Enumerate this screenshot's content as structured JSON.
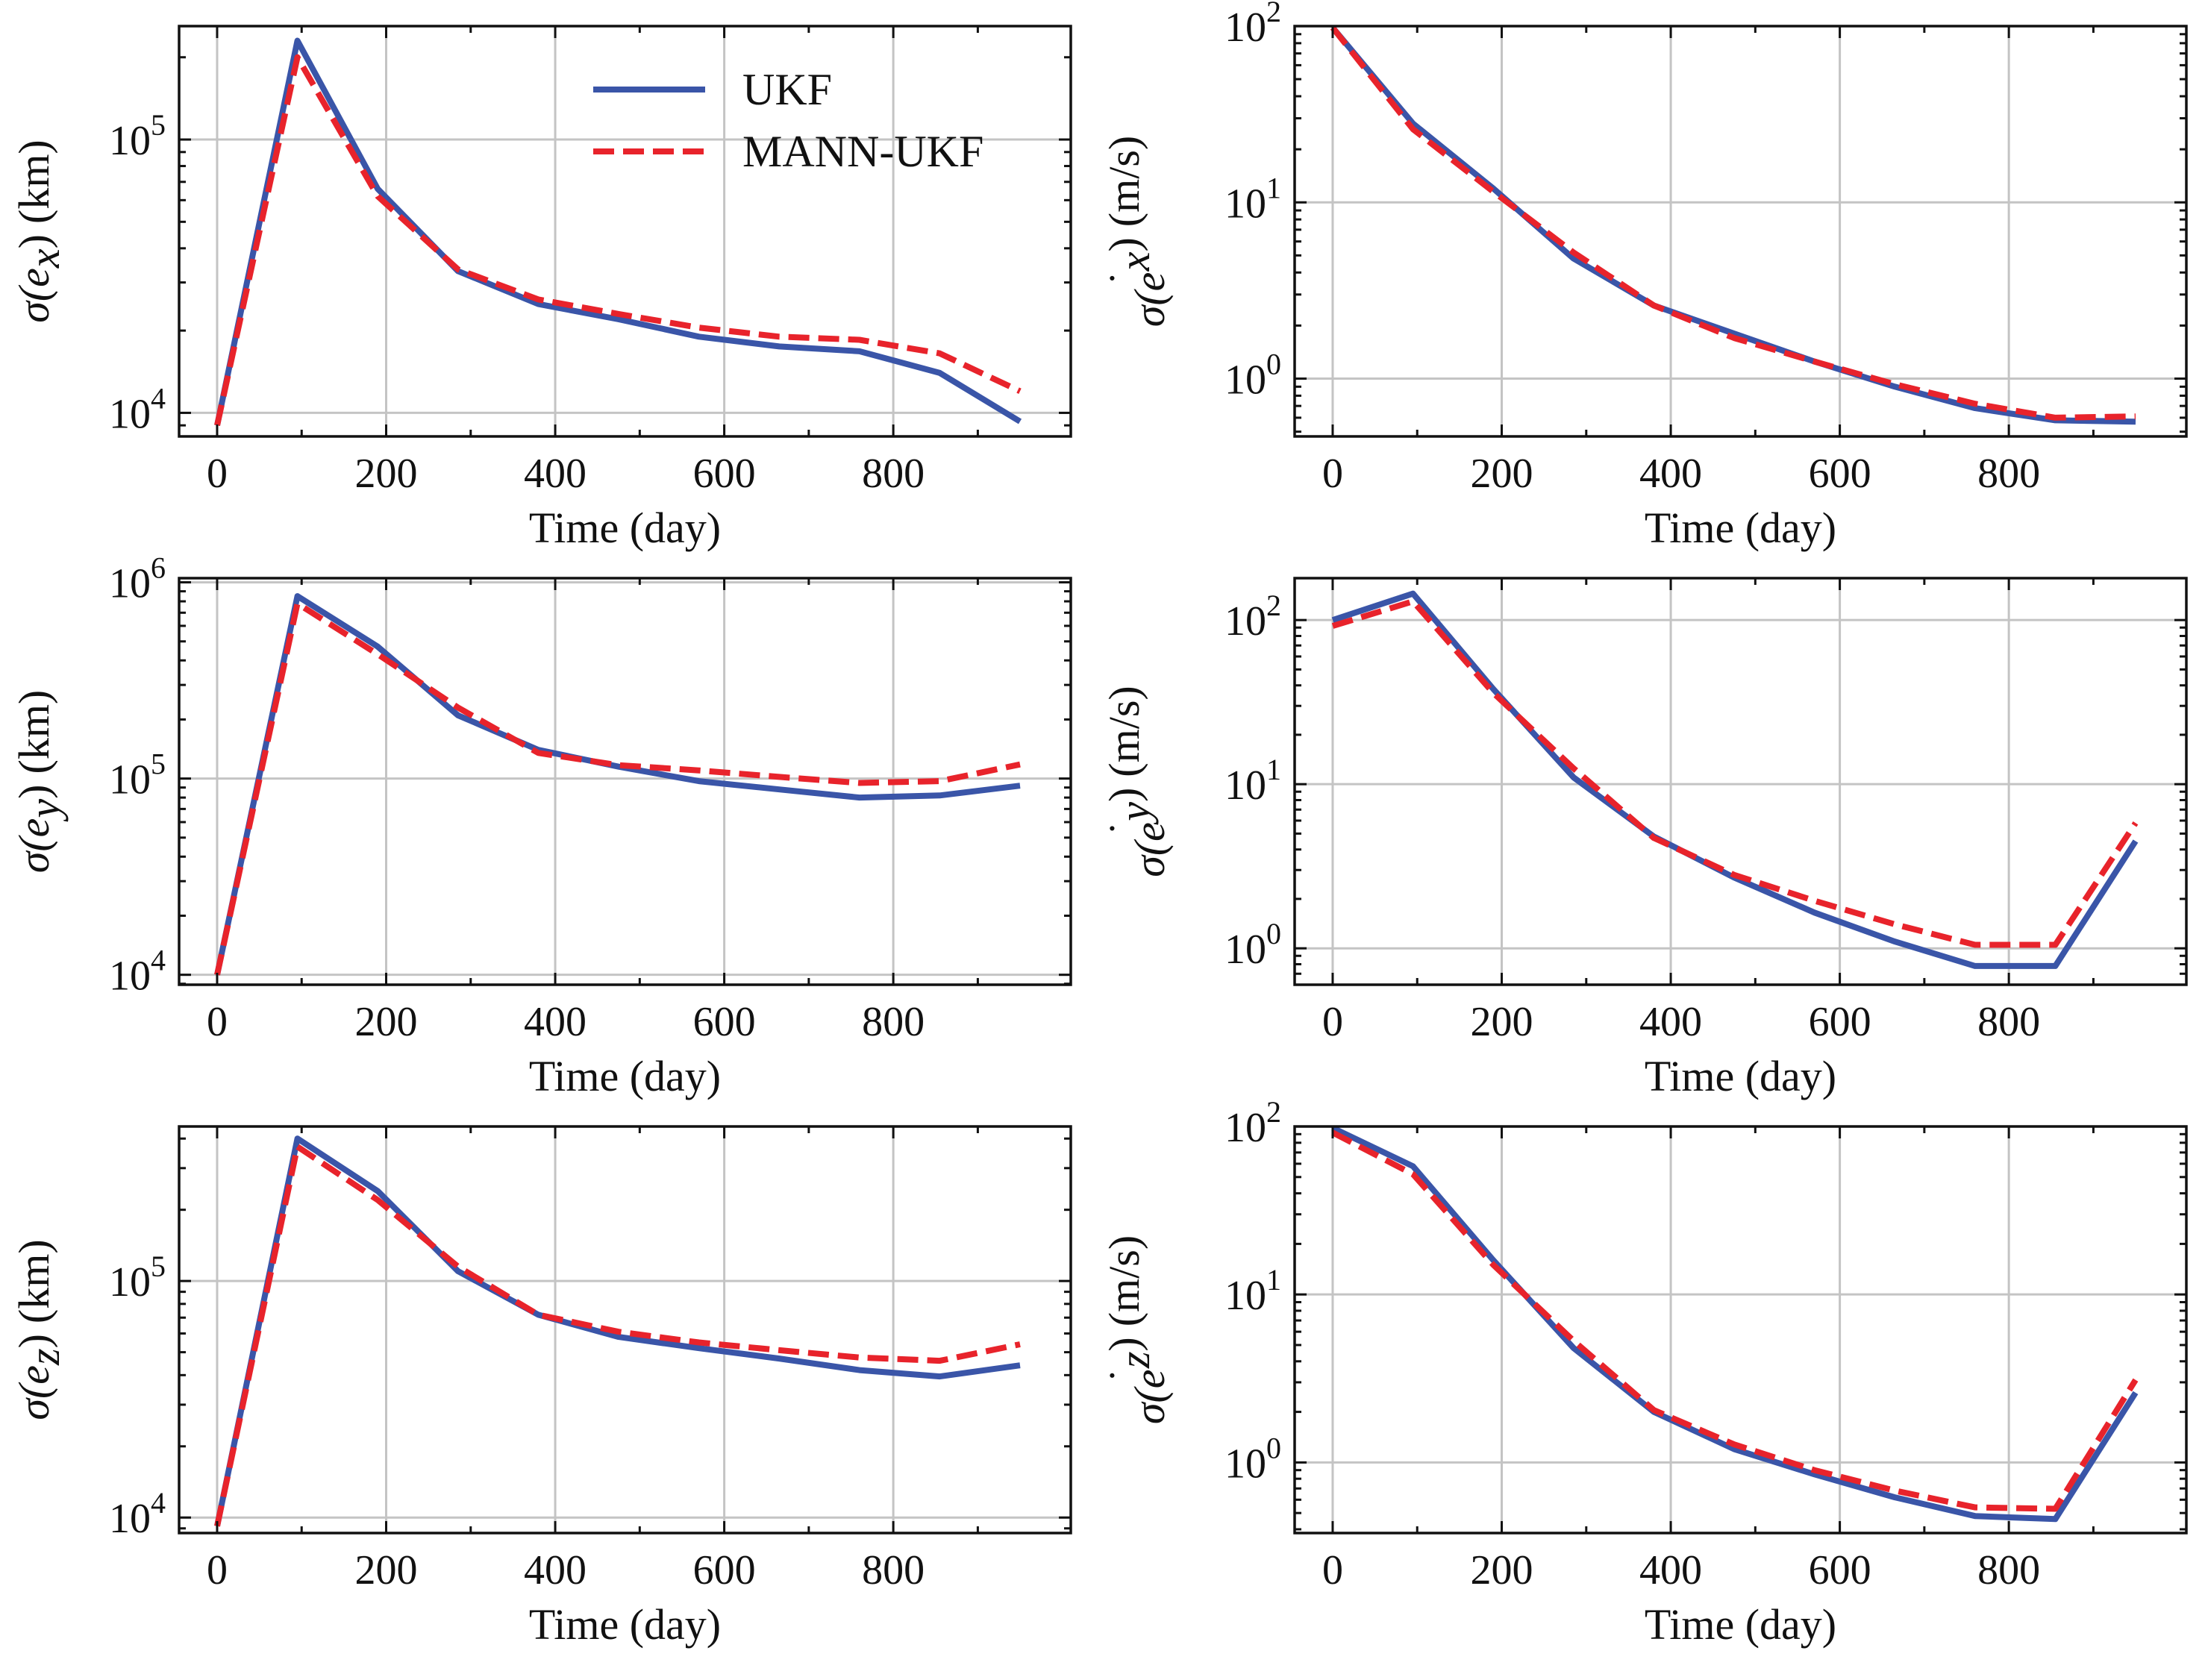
{
  "legend": {
    "ukf_label": "UKF",
    "mann_label": "MANN-UKF"
  },
  "colors": {
    "ukf": "#3a55a8",
    "mann": "#e8232b"
  },
  "chart_data": [
    {
      "type": "line",
      "id": "ex",
      "xlabel": "Time (day)",
      "ylabel": {
        "main": "σ(e",
        "sub": "x",
        "dot": false,
        "unit": "(km)"
      },
      "xlim": [
        -45,
        1010
      ],
      "ylim": [
        8200,
        260000
      ],
      "x_ticks": [
        0,
        200,
        400,
        600,
        800
      ],
      "x_tick_labels": [
        "0",
        "200",
        "400",
        "600",
        "800"
      ],
      "y_major_ticks": [
        10000,
        100000
      ],
      "y_tick_labels": [
        {
          "base": "10",
          "exp": "4"
        },
        {
          "base": "10",
          "exp": "5"
        }
      ],
      "legend": true,
      "series": [
        {
          "name": "UKF",
          "x": [
            0,
            95,
            190,
            285,
            380,
            475,
            570,
            665,
            760,
            855,
            950
          ],
          "values": [
            9000,
            230000,
            66000,
            33000,
            25000,
            22000,
            19000,
            17500,
            16800,
            14000,
            9300
          ]
        },
        {
          "name": "MANN-UKF",
          "x": [
            0,
            95,
            190,
            285,
            380,
            475,
            570,
            665,
            760,
            855,
            950
          ],
          "values": [
            9000,
            200000,
            62000,
            33500,
            26000,
            23000,
            20500,
            19000,
            18500,
            16500,
            12000
          ]
        }
      ]
    },
    {
      "type": "line",
      "id": "vx",
      "xlabel": "Time (day)",
      "ylabel": {
        "main": "σ(e",
        "sub": "x",
        "dot": true,
        "unit": "(m/s)"
      },
      "xlim": [
        -45,
        1010
      ],
      "ylim": [
        0.47,
        100
      ],
      "x_ticks": [
        0,
        200,
        400,
        600,
        800
      ],
      "x_tick_labels": [
        "0",
        "200",
        "400",
        "600",
        "800"
      ],
      "y_major_ticks": [
        1,
        10,
        100
      ],
      "y_tick_labels": [
        {
          "base": "10",
          "exp": "0"
        },
        {
          "base": "10",
          "exp": "1"
        },
        {
          "base": "10",
          "exp": "2"
        }
      ],
      "legend": false,
      "series": [
        {
          "name": "UKF",
          "x": [
            0,
            95,
            190,
            285,
            380,
            475,
            570,
            665,
            760,
            855,
            950
          ],
          "values": [
            98,
            28,
            12,
            4.8,
            2.6,
            1.8,
            1.25,
            0.9,
            0.68,
            0.58,
            0.57
          ]
        },
        {
          "name": "MANN-UKF",
          "x": [
            0,
            95,
            190,
            285,
            380,
            475,
            570,
            665,
            760,
            855,
            950
          ],
          "values": [
            98,
            26,
            11.5,
            5.2,
            2.6,
            1.7,
            1.25,
            0.93,
            0.72,
            0.6,
            0.61
          ]
        }
      ]
    },
    {
      "type": "line",
      "id": "ey",
      "xlabel": "Time (day)",
      "ylabel": {
        "main": "σ(e",
        "sub": "y",
        "dot": false,
        "unit": "(km)"
      },
      "xlim": [
        -45,
        1010
      ],
      "ylim": [
        8900,
        1050000
      ],
      "x_ticks": [
        0,
        200,
        400,
        600,
        800
      ],
      "x_tick_labels": [
        "0",
        "200",
        "400",
        "600",
        "800"
      ],
      "y_major_ticks": [
        10000,
        100000,
        1000000
      ],
      "y_tick_labels": [
        {
          "base": "10",
          "exp": "4"
        },
        {
          "base": "10",
          "exp": "5"
        },
        {
          "base": "10",
          "exp": "6"
        }
      ],
      "legend": false,
      "series": [
        {
          "name": "UKF",
          "x": [
            0,
            95,
            190,
            285,
            380,
            475,
            570,
            665,
            760,
            855,
            950
          ],
          "values": [
            10000,
            850000,
            470000,
            210000,
            140000,
            115000,
            97000,
            88000,
            80000,
            82000,
            92000
          ]
        },
        {
          "name": "MANN-UKF",
          "x": [
            0,
            95,
            190,
            285,
            380,
            475,
            570,
            665,
            760,
            855,
            950
          ],
          "values": [
            10000,
            780000,
            430000,
            230000,
            135000,
            117000,
            110000,
            102000,
            95000,
            97000,
            118000
          ]
        }
      ]
    },
    {
      "type": "line",
      "id": "vy",
      "xlabel": "Time (day)",
      "ylabel": {
        "main": "σ(e",
        "sub": "y",
        "dot": true,
        "unit": "(m/s)"
      },
      "xlim": [
        -45,
        1010
      ],
      "ylim": [
        0.6,
        180
      ],
      "x_ticks": [
        0,
        200,
        400,
        600,
        800
      ],
      "x_tick_labels": [
        "0",
        "200",
        "400",
        "600",
        "800"
      ],
      "y_major_ticks": [
        1,
        10,
        100
      ],
      "y_tick_labels": [
        {
          "base": "10",
          "exp": "0"
        },
        {
          "base": "10",
          "exp": "1"
        },
        {
          "base": "10",
          "exp": "2"
        }
      ],
      "legend": false,
      "series": [
        {
          "name": "UKF",
          "x": [
            0,
            95,
            190,
            285,
            380,
            475,
            570,
            665,
            760,
            855,
            950
          ],
          "values": [
            100,
            145,
            38,
            11,
            4.8,
            2.7,
            1.65,
            1.1,
            0.78,
            0.78,
            4.5
          ]
        },
        {
          "name": "MANN-UKF",
          "x": [
            0,
            95,
            190,
            285,
            380,
            475,
            570,
            665,
            760,
            855,
            950
          ],
          "values": [
            92,
            130,
            36,
            12.5,
            4.7,
            2.8,
            1.95,
            1.4,
            1.05,
            1.05,
            5.8
          ]
        }
      ]
    },
    {
      "type": "line",
      "id": "ez",
      "xlabel": "Time (day)",
      "ylabel": {
        "main": "σ(e",
        "sub": "z",
        "dot": false,
        "unit": "(km)"
      },
      "xlim": [
        -45,
        1010
      ],
      "ylim": [
        8600,
        450000
      ],
      "x_ticks": [
        0,
        200,
        400,
        600,
        800
      ],
      "x_tick_labels": [
        "0",
        "200",
        "400",
        "600",
        "800"
      ],
      "y_major_ticks": [
        10000,
        100000
      ],
      "y_tick_labels": [
        {
          "base": "10",
          "exp": "4"
        },
        {
          "base": "10",
          "exp": "5"
        }
      ],
      "legend": false,
      "series": [
        {
          "name": "UKF",
          "x": [
            0,
            95,
            190,
            285,
            380,
            475,
            570,
            665,
            760,
            855,
            950
          ],
          "values": [
            9200,
            400000,
            240000,
            110000,
            72000,
            58000,
            52000,
            47000,
            42000,
            39500,
            44000
          ]
        },
        {
          "name": "MANN-UKF",
          "x": [
            0,
            95,
            190,
            285,
            380,
            475,
            570,
            665,
            760,
            855,
            950
          ],
          "values": [
            9200,
            370000,
            220000,
            115000,
            72000,
            61000,
            55000,
            51000,
            47500,
            46000,
            54000
          ]
        }
      ]
    },
    {
      "type": "line",
      "id": "vz",
      "xlabel": "Time (day)",
      "ylabel": {
        "main": "σ(e",
        "sub": "z",
        "dot": true,
        "unit": "(m/s)"
      },
      "xlim": [
        -45,
        1010
      ],
      "ylim": [
        0.38,
        100
      ],
      "x_ticks": [
        0,
        200,
        400,
        600,
        800
      ],
      "x_tick_labels": [
        "0",
        "200",
        "400",
        "600",
        "800"
      ],
      "y_major_ticks": [
        1,
        10,
        100
      ],
      "y_tick_labels": [
        {
          "base": "10",
          "exp": "0"
        },
        {
          "base": "10",
          "exp": "1"
        },
        {
          "base": "10",
          "exp": "2"
        }
      ],
      "legend": false,
      "series": [
        {
          "name": "UKF",
          "x": [
            0,
            95,
            190,
            285,
            380,
            475,
            570,
            665,
            760,
            855,
            950
          ],
          "values": [
            98,
            58,
            16,
            4.8,
            2.0,
            1.2,
            0.85,
            0.62,
            0.48,
            0.46,
            2.6
          ]
        },
        {
          "name": "MANN-UKF",
          "x": [
            0,
            95,
            190,
            285,
            380,
            475,
            570,
            665,
            760,
            855,
            950
          ],
          "values": [
            92,
            52,
            15,
            5.3,
            2.05,
            1.28,
            0.9,
            0.68,
            0.54,
            0.53,
            3.1
          ]
        }
      ]
    }
  ]
}
